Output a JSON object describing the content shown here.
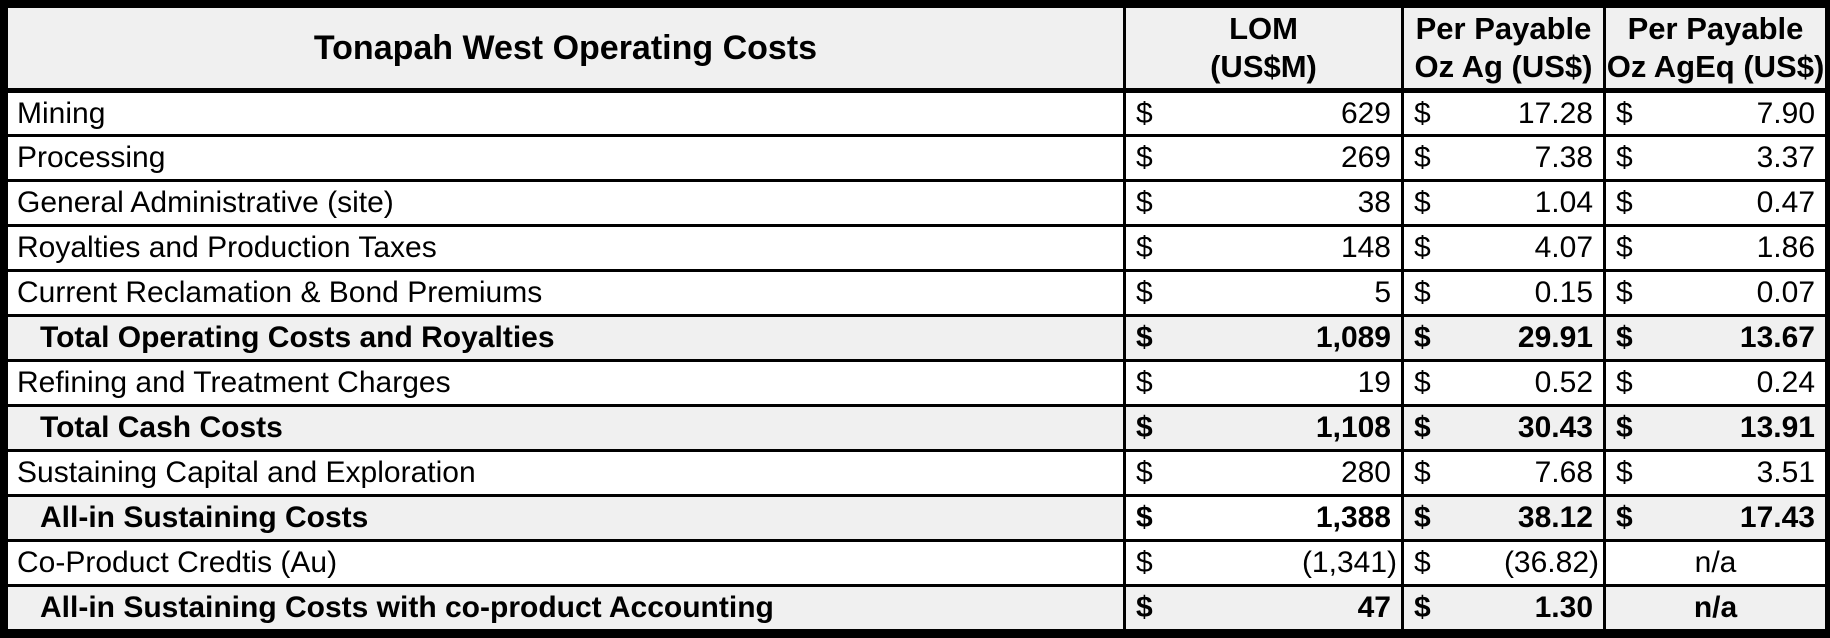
{
  "table": {
    "title": "Tonapah West Operating Costs",
    "currency_symbol": "$",
    "columns": [
      {
        "line1": "LOM",
        "line2": "(US$M)"
      },
      {
        "line1": "Per Payable",
        "line2": "Oz Ag (US$)"
      },
      {
        "line1": "Per Payable",
        "line2": "Oz AgEq (US$)"
      }
    ],
    "rows": [
      {
        "label": "Mining",
        "lom": "629",
        "per_oz_ag": "17.28",
        "per_oz_ageq": "7.90",
        "style": "regular"
      },
      {
        "label": "Processing",
        "lom": "269",
        "per_oz_ag": "7.38",
        "per_oz_ageq": "3.37",
        "style": "regular"
      },
      {
        "label": "General Administrative (site)",
        "lom": "38",
        "per_oz_ag": "1.04",
        "per_oz_ageq": "0.47",
        "style": "regular"
      },
      {
        "label": "Royalties and Production Taxes",
        "lom": "148",
        "per_oz_ag": "4.07",
        "per_oz_ageq": "1.86",
        "style": "regular"
      },
      {
        "label": "Current Reclamation & Bond Premiums",
        "lom": "5",
        "per_oz_ag": "0.15",
        "per_oz_ageq": "0.07",
        "style": "regular"
      },
      {
        "label": "Total Operating Costs and Royalties",
        "lom": "1,089",
        "per_oz_ag": "29.91",
        "per_oz_ageq": "13.67",
        "style": "total"
      },
      {
        "label": "Refining and Treatment Charges",
        "lom": "19",
        "per_oz_ag": "0.52",
        "per_oz_ageq": "0.24",
        "style": "regular"
      },
      {
        "label": "Total Cash Costs",
        "lom": "1,108",
        "per_oz_ag": "30.43",
        "per_oz_ageq": "13.91",
        "style": "total"
      },
      {
        "label": "Sustaining Capital and Exploration",
        "lom": "280",
        "per_oz_ag": "7.68",
        "per_oz_ageq": "3.51",
        "style": "regular"
      },
      {
        "label": "All-in Sustaining Costs",
        "lom": "1,388",
        "per_oz_ag": "38.12",
        "per_oz_ageq": "17.43",
        "style": "total",
        "lom_plain_bg": true
      },
      {
        "label": "Co-Product Credtis (Au)",
        "lom": "(1,341)",
        "per_oz_ag": "(36.82)",
        "per_oz_ageq": "n/a",
        "style": "regular"
      },
      {
        "label": "All-in Sustaining Costs with co-product Accounting",
        "lom": "47",
        "per_oz_ag": "1.30",
        "per_oz_ageq": "n/a",
        "style": "total"
      }
    ],
    "colors": {
      "header_bg": "#f0f0f0",
      "total_row_bg": "#f0f0f0",
      "row_bg": "#ffffff",
      "border": "#000000",
      "text": "#000000"
    }
  },
  "chart_data": {
    "type": "table",
    "title": "Tonapah West Operating Costs",
    "columns": [
      "Tonapah West Operating Costs",
      "LOM (US$M)",
      "Per Payable Oz Ag (US$)",
      "Per Payable Oz AgEq (US$)"
    ],
    "rows": [
      [
        "Mining",
        629,
        17.28,
        7.9
      ],
      [
        "Processing",
        269,
        7.38,
        3.37
      ],
      [
        "General Administrative (site)",
        38,
        1.04,
        0.47
      ],
      [
        "Royalties and Production Taxes",
        148,
        4.07,
        1.86
      ],
      [
        "Current Reclamation & Bond Premiums",
        5,
        0.15,
        0.07
      ],
      [
        "Total Operating Costs and Royalties",
        1089,
        29.91,
        13.67
      ],
      [
        "Refining and Treatment Charges",
        19,
        0.52,
        0.24
      ],
      [
        "Total Cash Costs",
        1108,
        30.43,
        13.91
      ],
      [
        "Sustaining Capital and Exploration",
        280,
        7.68,
        3.51
      ],
      [
        "All-in Sustaining Costs",
        1388,
        38.12,
        17.43
      ],
      [
        "Co-Product Credtis (Au)",
        -1341,
        -36.82,
        "n/a"
      ],
      [
        "All-in Sustaining Costs with co-product Accounting",
        47,
        1.3,
        "n/a"
      ]
    ],
    "notes": "Bold subtotal rows: Total Operating Costs and Royalties, Total Cash Costs, All-in Sustaining Costs, All-in Sustaining Costs with co-product Accounting. Negative values shown in parentheses."
  }
}
